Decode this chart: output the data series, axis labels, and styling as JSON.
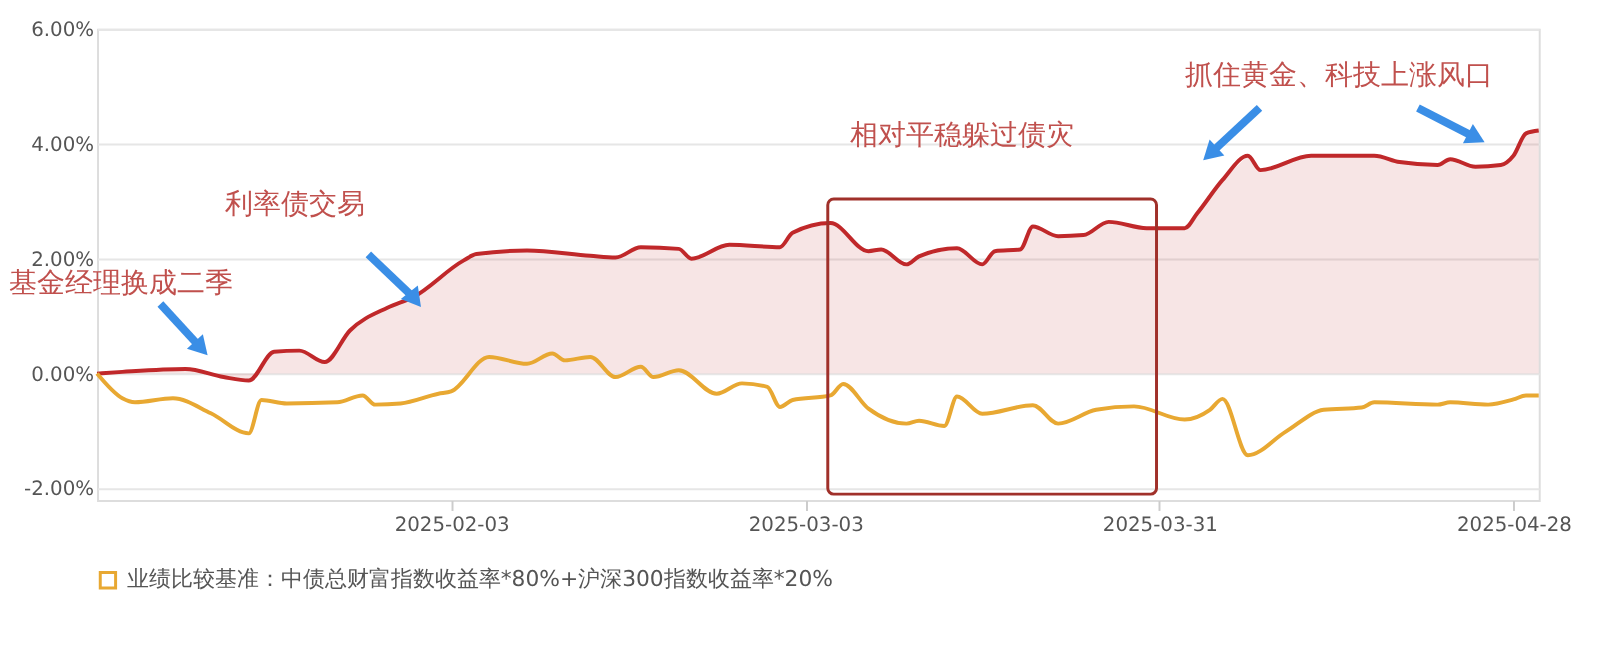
{
  "chart_data": {
    "type": "line",
    "series": [
      {
        "type": "area",
        "color": "#c0282a",
        "x": [
          "2025-01-06",
          "2025-01-08",
          "2025-01-13",
          "2025-01-16",
          "2025-01-18",
          "2025-01-20",
          "2025-01-22",
          "2025-01-24",
          "2025-01-26",
          "2025-01-29",
          "2025-01-31",
          "2025-02-04",
          "2025-02-05",
          "2025-02-09",
          "2025-02-14",
          "2025-02-16",
          "2025-02-18",
          "2025-02-21",
          "2025-02-22",
          "2025-02-25",
          "2025-03-01",
          "2025-03-02",
          "2025-03-05",
          "2025-03-08",
          "2025-03-09",
          "2025-03-11",
          "2025-03-12",
          "2025-03-15",
          "2025-03-17",
          "2025-03-18",
          "2025-03-20",
          "2025-03-21",
          "2025-03-23",
          "2025-03-25",
          "2025-03-27",
          "2025-03-30",
          "2025-04-02",
          "2025-04-03",
          "2025-04-05",
          "2025-04-07",
          "2025-04-08",
          "2025-04-12",
          "2025-04-17",
          "2025-04-19",
          "2025-04-22",
          "2025-04-23",
          "2025-04-25",
          "2025-04-27",
          "2025-04-28",
          "2025-04-29",
          "2025-04-30"
        ],
        "values": [
          0,
          0.03,
          0.08,
          -0.06,
          -0.12,
          0.38,
          0.4,
          0.2,
          0.75,
          1.15,
          1.33,
          1.97,
          2.08,
          2.14,
          2.05,
          2.02,
          2.2,
          2.17,
          2.0,
          2.24,
          2.2,
          2.45,
          2.62,
          2.13,
          2.16,
          1.9,
          2.04,
          2.18,
          1.9,
          2.13,
          2.16,
          2.56,
          2.39,
          2.41,
          2.64,
          2.53,
          2.53,
          2.79,
          3.37,
          3.79,
          3.54,
          3.79,
          3.79,
          3.68,
          3.63,
          3.73,
          3.6,
          3.63,
          3.79,
          4.18,
          4.23
        ]
      },
      {
        "name": "业绩比较基准：中债总财富指数收益率*80%+沪深300指数收益率*20%",
        "color": "#e8a832",
        "x": [
          "2025-01-06",
          "2025-01-08",
          "2025-01-09",
          "2025-01-12",
          "2025-01-15",
          "2025-01-18",
          "2025-01-19",
          "2025-01-21",
          "2025-01-25",
          "2025-01-27",
          "2025-01-28",
          "2025-01-30",
          "2025-02-02",
          "2025-02-03",
          "2025-02-06",
          "2025-02-09",
          "2025-02-11",
          "2025-02-12",
          "2025-02-14",
          "2025-02-16",
          "2025-02-18",
          "2025-02-19",
          "2025-02-21",
          "2025-02-24",
          "2025-02-26",
          "2025-02-28",
          "2025-03-01",
          "2025-03-02",
          "2025-03-05",
          "2025-03-06",
          "2025-03-08",
          "2025-03-11",
          "2025-03-12",
          "2025-03-14",
          "2025-03-15",
          "2025-03-17",
          "2025-03-21",
          "2025-03-23",
          "2025-03-26",
          "2025-03-29",
          "2025-04-02",
          "2025-04-04",
          "2025-04-05",
          "2025-04-07",
          "2025-04-10",
          "2025-04-13",
          "2025-04-16",
          "2025-04-17",
          "2025-04-22",
          "2025-04-23",
          "2025-04-26",
          "2025-04-28",
          "2025-04-29",
          "2025-04-30"
        ],
        "values": [
          0,
          -0.43,
          -0.5,
          -0.43,
          -0.69,
          -1.04,
          -0.46,
          -0.52,
          -0.5,
          -0.38,
          -0.54,
          -0.52,
          -0.35,
          -0.31,
          0.29,
          0.17,
          0.35,
          0.23,
          0.29,
          -0.06,
          0.12,
          -0.06,
          0.06,
          -0.35,
          -0.17,
          -0.23,
          -0.58,
          -0.46,
          -0.38,
          -0.18,
          -0.61,
          -0.87,
          -0.82,
          -0.91,
          -0.4,
          -0.7,
          -0.55,
          -0.87,
          -0.63,
          -0.57,
          -0.8,
          -0.63,
          -0.44,
          -1.42,
          -1.01,
          -0.63,
          -0.59,
          -0.5,
          -0.54,
          -0.5,
          -0.54,
          -0.45,
          -0.38,
          -0.38
        ]
      }
    ],
    "xlim": [
      "2025-01-06",
      "2025-04-30"
    ],
    "xticks": [
      "2025-02-03",
      "2025-03-03",
      "2025-03-31",
      "2025-04-28"
    ],
    "ylim": [
      -2.2,
      6
    ],
    "yticks": [
      {
        "value": -2,
        "label": "-2.00%"
      },
      {
        "value": 0,
        "label": "0.00%"
      },
      {
        "value": 2,
        "label": "2.00%"
      },
      {
        "value": 4,
        "label": "4.00%"
      },
      {
        "value": 6,
        "label": "6.00%"
      }
    ],
    "grid": "y",
    "legend": "bottom",
    "annotations": [
      "基金经理换成二季",
      {
        "text": "利率债交易",
        "x": "2025-01-31",
        "y": 1.33
      },
      "相对平稳躲过债灾",
      "抓住黄金、科技上涨风口"
    ]
  }
}
